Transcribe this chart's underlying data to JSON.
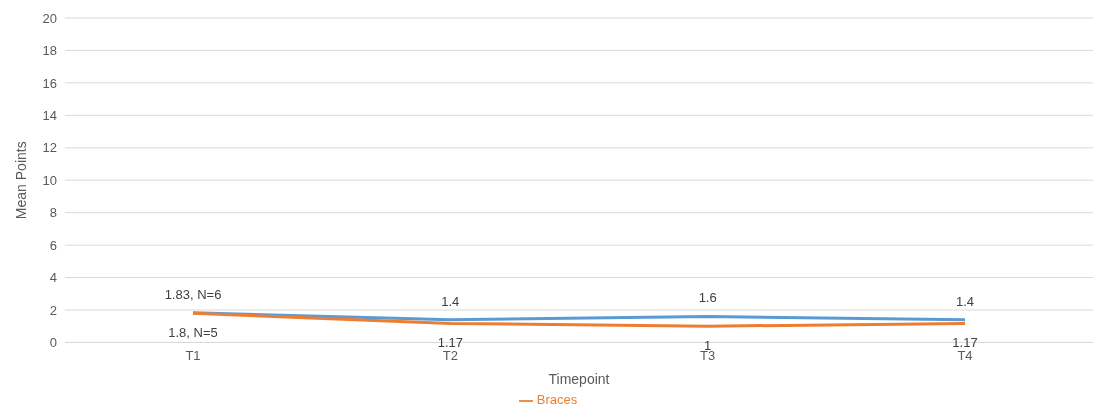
{
  "chart_data": {
    "type": "line",
    "xlabel": "Timepoint",
    "ylabel": "Mean Points",
    "categories": [
      "T1",
      "T2",
      "T3",
      "T4"
    ],
    "series": [
      {
        "color": "#5b9bd5",
        "values": [
          1.83,
          1.4,
          1.6,
          1.4
        ],
        "value_labels": [
          "1.83, N=6",
          "1.4",
          "1.6",
          "1.4"
        ]
      },
      {
        "name": "Braces",
        "color": "#ed7d31",
        "values": [
          1.8,
          1.17,
          1,
          1.17
        ],
        "value_labels": [
          "1.8, N=5",
          "1.17",
          "1",
          "1.17"
        ]
      }
    ],
    "ylim": [
      0,
      20
    ],
    "yticks": [
      0,
      2,
      4,
      6,
      8,
      10,
      12,
      14,
      16,
      18,
      20
    ],
    "grid": "y",
    "legend": "bottom",
    "marker": "none",
    "line_style": "solid"
  }
}
